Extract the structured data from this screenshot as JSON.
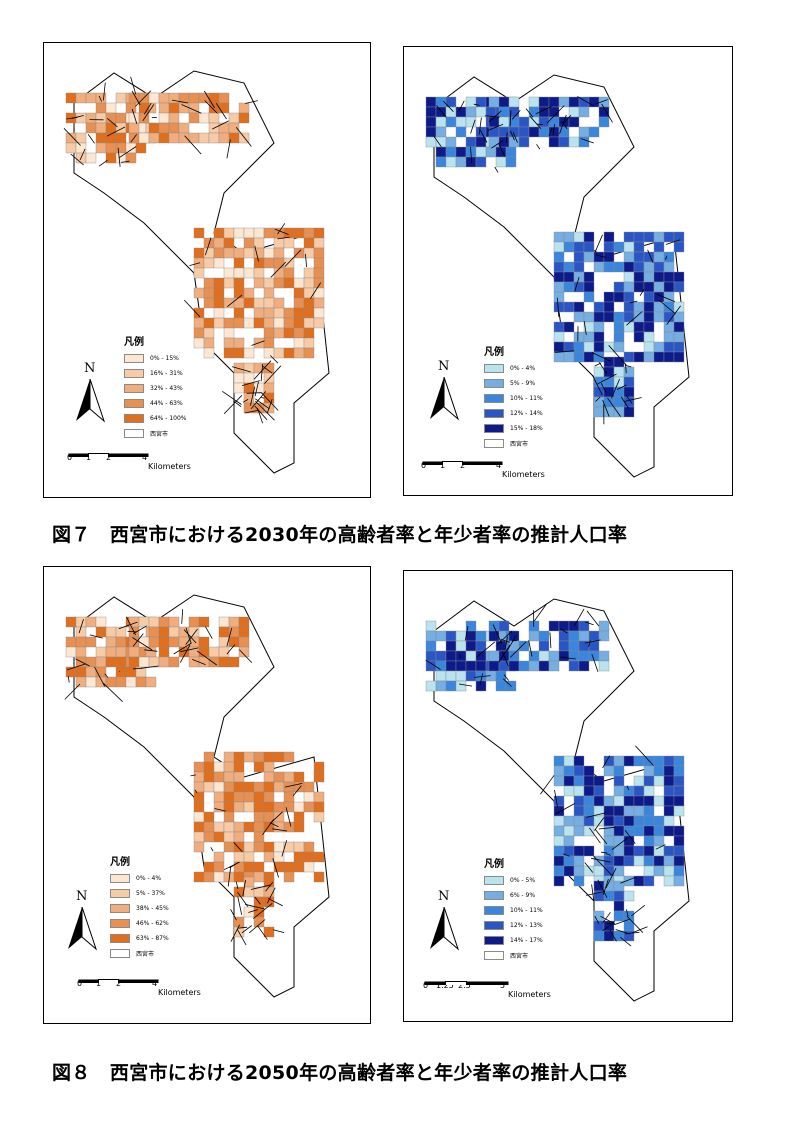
{
  "figures": [
    {
      "caption": "図７　西宮市における2030年の高齢者率と年少者率の推計人口率",
      "maps": [
        {
          "theme": "orange",
          "legend_title": "凡例",
          "legend_items": [
            {
              "label": "0% - 15%",
              "color": "#fde7d2"
            },
            {
              "label": "16% - 31%",
              "color": "#f8cba7"
            },
            {
              "label": "32% - 43%",
              "color": "#f0ae7f"
            },
            {
              "label": "44% - 63%",
              "color": "#e88f52"
            },
            {
              "label": "64% - 100%",
              "color": "#e06e1c"
            },
            {
              "label": "西宮市",
              "color": "#ffffff"
            }
          ],
          "north": "N",
          "scale_ticks": [
            "0",
            "1",
            "2",
            "4"
          ],
          "scale_unit": "Kilometers"
        },
        {
          "theme": "blue",
          "legend_title": "凡例",
          "legend_items": [
            {
              "label": "0% - 4%",
              "color": "#b9e3ee"
            },
            {
              "label": "5% - 9%",
              "color": "#74aee2"
            },
            {
              "label": "10% - 11%",
              "color": "#3a86dc"
            },
            {
              "label": "12% - 14%",
              "color": "#2a55c4"
            },
            {
              "label": "15% - 18%",
              "color": "#0c1a8a"
            },
            {
              "label": "西宮市",
              "color": "#ffffff"
            }
          ],
          "north": "N",
          "scale_ticks": [
            "0",
            "1",
            "2",
            "4"
          ],
          "scale_unit": "Kilometers"
        }
      ]
    },
    {
      "caption": "図８　西宮市における2050年の高齢者率と年少者率の推計人口率",
      "maps": [
        {
          "theme": "orange",
          "legend_title": "凡例",
          "legend_items": [
            {
              "label": "0% - 4%",
              "color": "#fde7d2"
            },
            {
              "label": "5% - 37%",
              "color": "#f8cba7"
            },
            {
              "label": "38% - 45%",
              "color": "#f0ae7f"
            },
            {
              "label": "46% - 62%",
              "color": "#e88f52"
            },
            {
              "label": "63% - 87%",
              "color": "#e06e1c"
            },
            {
              "label": "西宮市",
              "color": "#ffffff"
            }
          ],
          "north": "N",
          "scale_ticks": [
            "0",
            "1",
            "2",
            "4"
          ],
          "scale_unit": "Kilometers"
        },
        {
          "theme": "blue",
          "legend_title": "凡例",
          "legend_items": [
            {
              "label": "0% - 5%",
              "color": "#b9e3ee"
            },
            {
              "label": "6% - 9%",
              "color": "#74aee2"
            },
            {
              "label": "10% - 11%",
              "color": "#3a86dc"
            },
            {
              "label": "12% - 13%",
              "color": "#2a55c4"
            },
            {
              "label": "14% - 17%",
              "color": "#0c1a8a"
            },
            {
              "label": "西宮市",
              "color": "#ffffff"
            }
          ],
          "north": "N",
          "scale_ticks": [
            "0",
            "1.25",
            "2.5",
            "5"
          ],
          "scale_unit": "Kilometers"
        }
      ]
    }
  ]
}
